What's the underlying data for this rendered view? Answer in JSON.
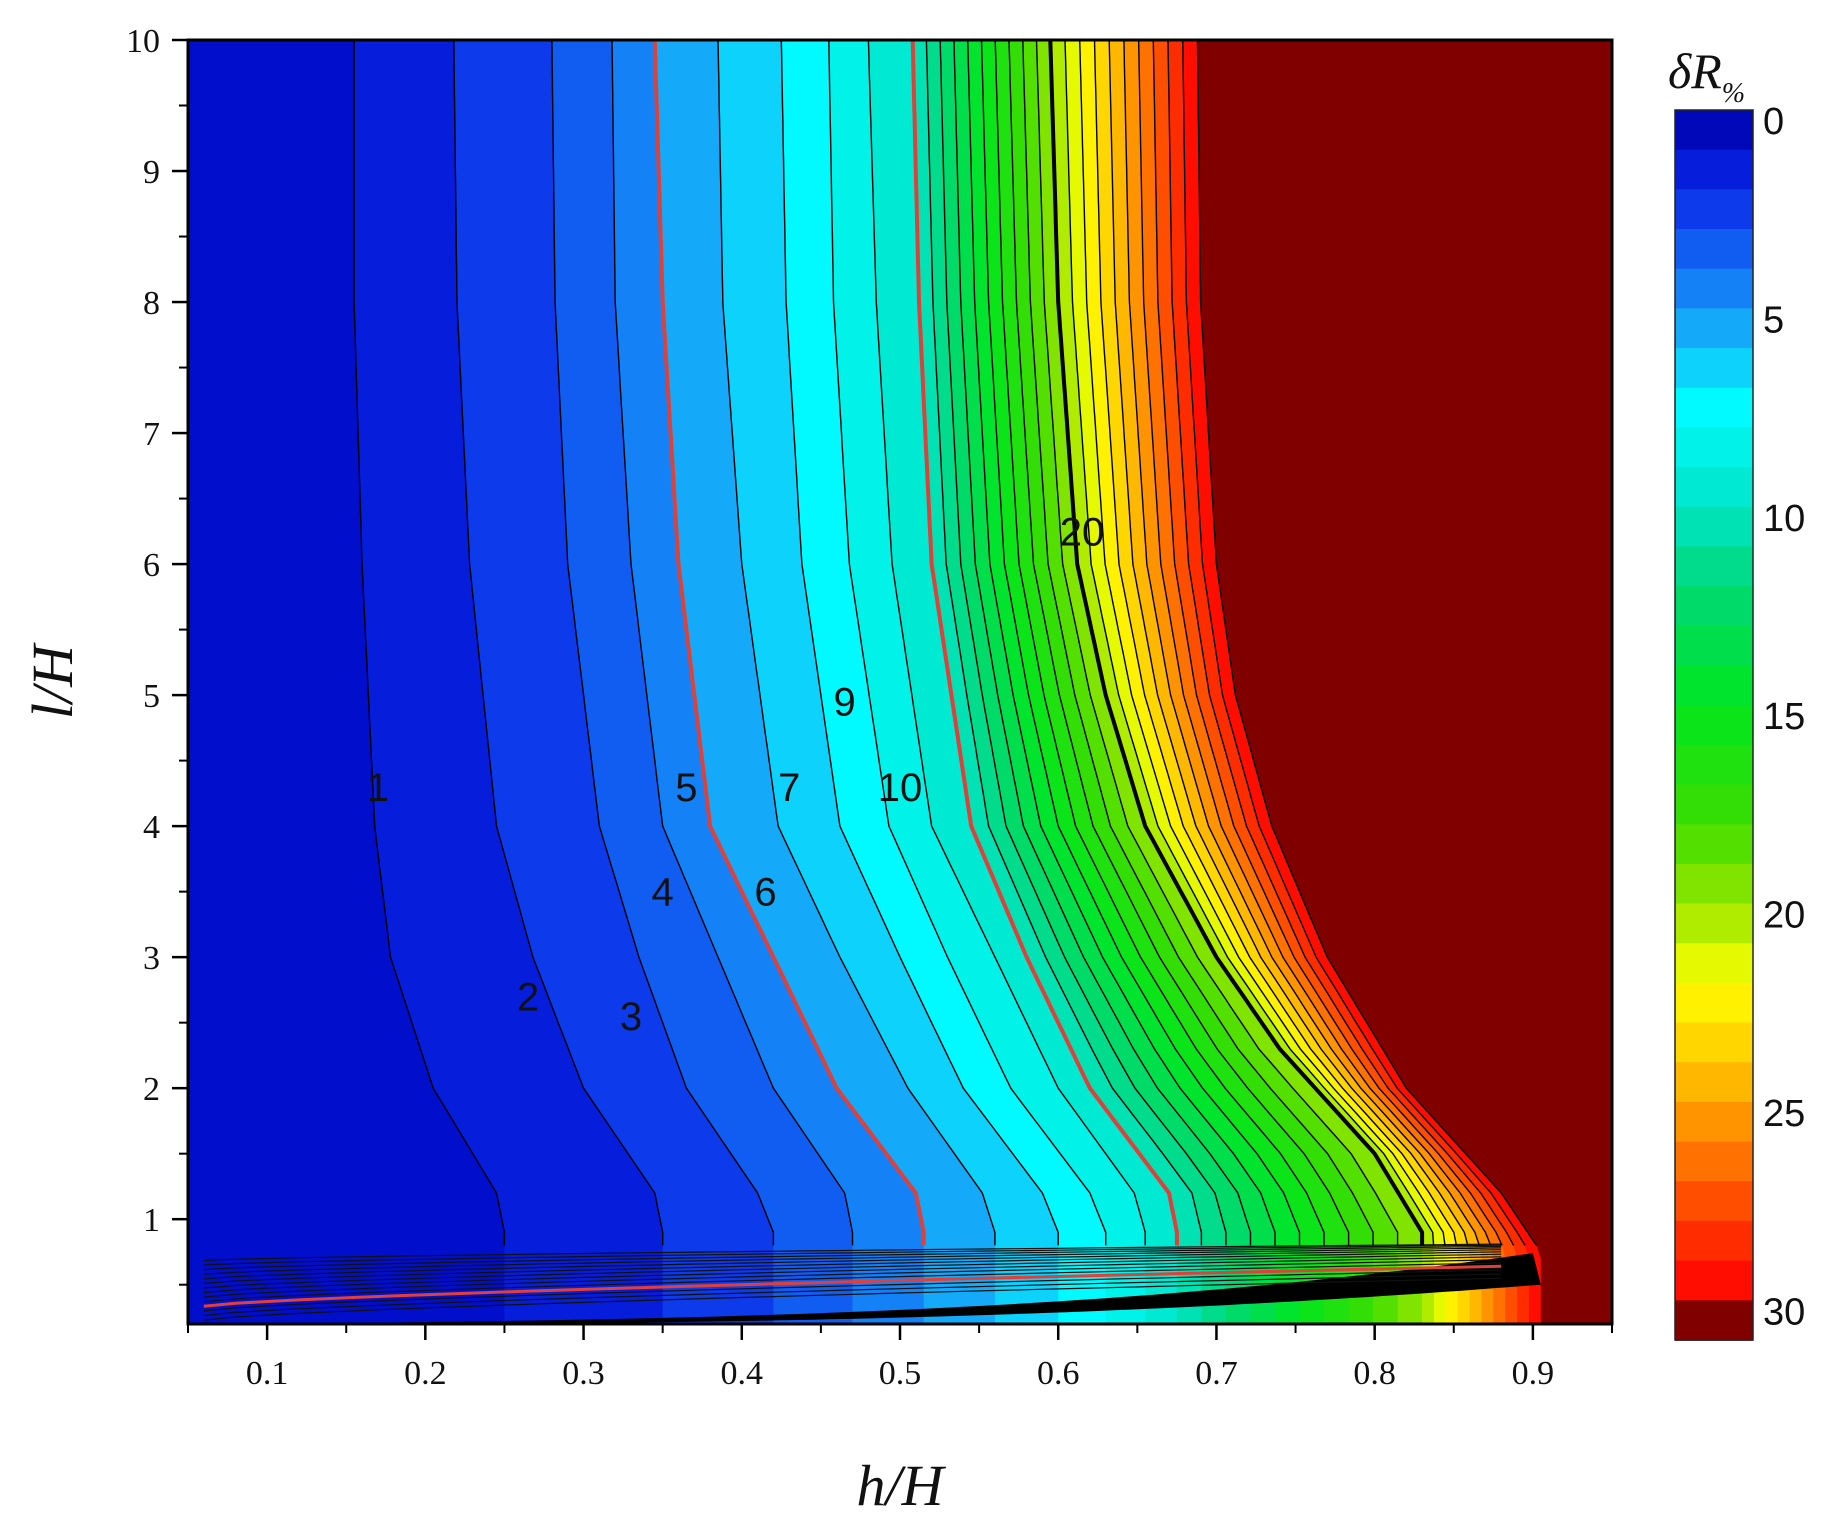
{
  "chart_data": {
    "type": "contour",
    "xlabel": "h/H",
    "ylabel": "l/H",
    "colorbar_title": "δR",
    "colorbar_title_sub": "%",
    "xlim": [
      0.05,
      0.95
    ],
    "ylim": [
      0.2,
      10
    ],
    "x_ticks": [
      0.1,
      0.2,
      0.3,
      0.4,
      0.5,
      0.6,
      0.7,
      0.8,
      0.9
    ],
    "x_tick_labels": [
      "0.1",
      "0.2",
      "0.3",
      "0.4",
      "0.5",
      "0.6",
      "0.7",
      "0.8",
      "0.9"
    ],
    "y_ticks": [
      1,
      2,
      3,
      4,
      5,
      6,
      7,
      8,
      9,
      10
    ],
    "y_tick_labels": [
      "1",
      "2",
      "3",
      "4",
      "5",
      "6",
      "7",
      "8",
      "9",
      "10"
    ],
    "colorbar_range": [
      0,
      31
    ],
    "colorbar_ticks": [
      0,
      5,
      10,
      15,
      20,
      25,
      30
    ],
    "colorbar_tick_labels": [
      "0",
      "5",
      "10",
      "15",
      "20",
      "25",
      "30"
    ],
    "level_step": 1,
    "highlighted_levels": [
      5,
      10
    ],
    "bold_levels": [
      20
    ],
    "colors": {
      "low": "#0010c8",
      "mid_low": "#1e90ff",
      "mid": "#00ffff",
      "mid_high": "#00e000",
      "high": "#ffff00",
      "very_high": "#ff2000",
      "saturated": "#800000",
      "highlight_line": "#e0403a"
    },
    "contour_lines": [
      {
        "level": 1,
        "h_at_l": [
          [
            0.25,
            0.9
          ],
          [
            0.245,
            1.2
          ],
          [
            0.205,
            2
          ],
          [
            0.178,
            3
          ],
          [
            0.168,
            4
          ],
          [
            0.16,
            6
          ],
          [
            0.155,
            8
          ],
          [
            0.155,
            10
          ]
        ]
      },
      {
        "level": 2,
        "h_at_l": [
          [
            0.35,
            0.9
          ],
          [
            0.345,
            1.2
          ],
          [
            0.3,
            2
          ],
          [
            0.268,
            3
          ],
          [
            0.245,
            4
          ],
          [
            0.228,
            6
          ],
          [
            0.22,
            8
          ],
          [
            0.218,
            10
          ]
        ]
      },
      {
        "level": 3,
        "h_at_l": [
          [
            0.42,
            0.9
          ],
          [
            0.41,
            1.2
          ],
          [
            0.365,
            2
          ],
          [
            0.335,
            3
          ],
          [
            0.31,
            4
          ],
          [
            0.29,
            6
          ],
          [
            0.282,
            8
          ],
          [
            0.28,
            10
          ]
        ]
      },
      {
        "level": 4,
        "h_at_l": [
          [
            0.47,
            0.9
          ],
          [
            0.465,
            1.2
          ],
          [
            0.42,
            2
          ],
          [
            0.385,
            3
          ],
          [
            0.35,
            4
          ],
          [
            0.33,
            6
          ],
          [
            0.32,
            8
          ],
          [
            0.318,
            10
          ]
        ]
      },
      {
        "level": 5,
        "h_at_l": [
          [
            0.515,
            0.9
          ],
          [
            0.51,
            1.2
          ],
          [
            0.46,
            2
          ],
          [
            0.42,
            3
          ],
          [
            0.38,
            4
          ],
          [
            0.36,
            6
          ],
          [
            0.35,
            8
          ],
          [
            0.345,
            10
          ]
        ]
      },
      {
        "level": 6,
        "h_at_l": [
          [
            0.56,
            0.9
          ],
          [
            0.552,
            1.2
          ],
          [
            0.505,
            2
          ],
          [
            0.462,
            3
          ],
          [
            0.423,
            4
          ],
          [
            0.4,
            6
          ],
          [
            0.388,
            8
          ],
          [
            0.385,
            10
          ]
        ]
      },
      {
        "level": 7,
        "h_at_l": [
          [
            0.6,
            0.9
          ],
          [
            0.59,
            1.2
          ],
          [
            0.54,
            2
          ],
          [
            0.5,
            3
          ],
          [
            0.462,
            4
          ],
          [
            0.438,
            6
          ],
          [
            0.428,
            8
          ],
          [
            0.425,
            10
          ]
        ]
      },
      {
        "level": 8,
        "h_at_l": [
          [
            0.63,
            0.9
          ],
          [
            0.62,
            1.2
          ],
          [
            0.57,
            2
          ],
          [
            0.53,
            3
          ],
          [
            0.493,
            4
          ],
          [
            0.468,
            6
          ],
          [
            0.458,
            8
          ],
          [
            0.455,
            10
          ]
        ]
      },
      {
        "level": 9,
        "h_at_l": [
          [
            0.655,
            0.9
          ],
          [
            0.648,
            1.2
          ],
          [
            0.6,
            2
          ],
          [
            0.56,
            3
          ],
          [
            0.52,
            4
          ],
          [
            0.495,
            6
          ],
          [
            0.485,
            8
          ],
          [
            0.48,
            10
          ]
        ]
      },
      {
        "level": 10,
        "h_at_l": [
          [
            0.675,
            0.9
          ],
          [
            0.67,
            1.2
          ],
          [
            0.62,
            2
          ],
          [
            0.58,
            3
          ],
          [
            0.545,
            4
          ],
          [
            0.52,
            6
          ],
          [
            0.512,
            8
          ],
          [
            0.508,
            10
          ]
        ]
      },
      {
        "level": 20,
        "h_at_l": [
          [
            0.83,
            0.9
          ],
          [
            0.8,
            1.5
          ],
          [
            0.74,
            2.3
          ],
          [
            0.7,
            3
          ],
          [
            0.655,
            4
          ],
          [
            0.63,
            5
          ],
          [
            0.612,
            6
          ],
          [
            0.6,
            8
          ],
          [
            0.595,
            10
          ]
        ]
      },
      {
        "level": 30,
        "h_at_l": [
          [
            0.905,
            0.75
          ],
          [
            0.88,
            1.2
          ],
          [
            0.82,
            2
          ],
          [
            0.77,
            3
          ],
          [
            0.735,
            4
          ],
          [
            0.712,
            5
          ],
          [
            0.7,
            6
          ],
          [
            0.69,
            8
          ],
          [
            0.688,
            10
          ]
        ]
      }
    ],
    "contour_labels": [
      {
        "text": "1",
        "x": 0.17,
        "y": 4.3
      },
      {
        "text": "2",
        "x": 0.265,
        "y": 2.7
      },
      {
        "text": "3",
        "x": 0.33,
        "y": 2.55
      },
      {
        "text": "4",
        "x": 0.35,
        "y": 3.5
      },
      {
        "text": "5",
        "x": 0.365,
        "y": 4.3
      },
      {
        "text": "6",
        "x": 0.415,
        "y": 3.5
      },
      {
        "text": "7",
        "x": 0.43,
        "y": 4.3
      },
      {
        "text": "9",
        "x": 0.465,
        "y": 4.95
      },
      {
        "text": "10",
        "x": 0.5,
        "y": 4.3
      },
      {
        "text": "20",
        "x": 0.615,
        "y": 6.25
      }
    ]
  }
}
